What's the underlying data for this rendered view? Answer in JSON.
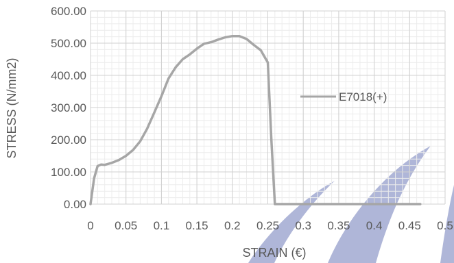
{
  "chart_data": {
    "type": "line",
    "title": "",
    "xlabel": "STRAIN (€)",
    "ylabel": "STRESS (N/mm2)",
    "xlim": [
      0,
      0.5
    ],
    "ylim": [
      0,
      600
    ],
    "xticks": [
      "0",
      "0.05",
      "0.1",
      "0.15",
      "0.2",
      "0.25",
      "0.3",
      "0.35",
      "0.4",
      "0.45",
      "0.5"
    ],
    "yticks": [
      "0.00",
      "100.00",
      "200.00",
      "300.00",
      "400.00",
      "500.00",
      "600.00"
    ],
    "grid": true,
    "legend_position": "right",
    "series": [
      {
        "name": "E7018(+)",
        "color": "#a6a6a6",
        "x": [
          0,
          0.005,
          0.01,
          0.015,
          0.02,
          0.03,
          0.04,
          0.05,
          0.06,
          0.07,
          0.08,
          0.09,
          0.1,
          0.11,
          0.12,
          0.13,
          0.14,
          0.15,
          0.16,
          0.17,
          0.18,
          0.19,
          0.2,
          0.21,
          0.22,
          0.23,
          0.24,
          0.25,
          0.255,
          0.26,
          0.265,
          0.27,
          0.3,
          0.35,
          0.4,
          0.45,
          0.465
        ],
        "y": [
          0,
          80,
          118,
          123,
          122,
          128,
          137,
          150,
          168,
          195,
          235,
          285,
          335,
          390,
          425,
          450,
          465,
          483,
          498,
          503,
          511,
          518,
          522,
          522,
          513,
          495,
          478,
          440,
          200,
          0,
          0,
          0,
          0,
          0,
          0,
          0,
          0
        ]
      }
    ]
  },
  "watermark": {
    "color": "#1a2f8f",
    "opacity": 0.35
  }
}
